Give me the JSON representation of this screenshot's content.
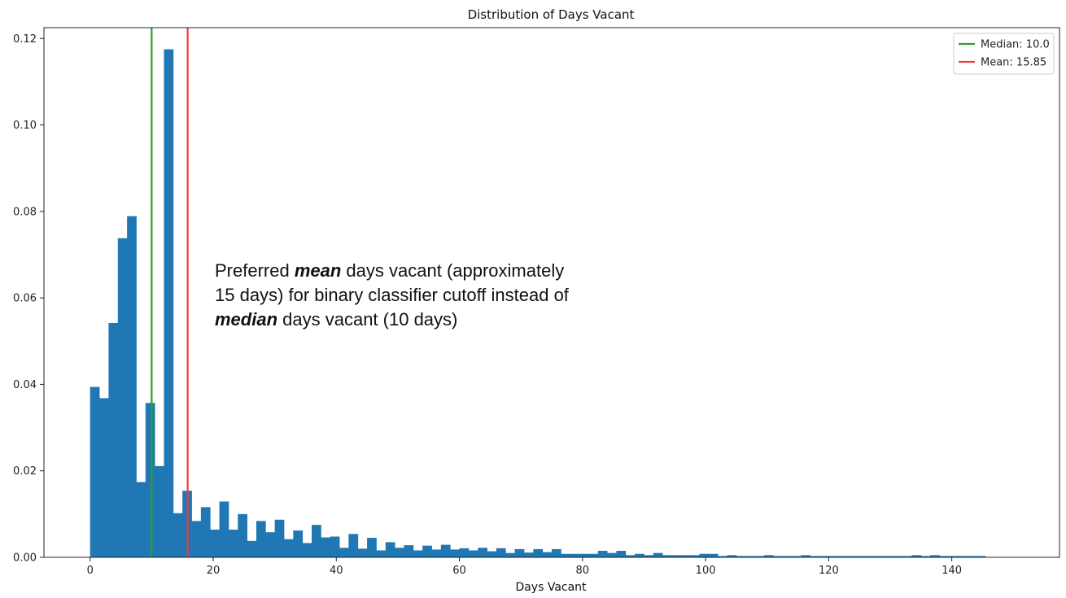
{
  "chart_data": {
    "type": "bar",
    "title": "Distribution of Days Vacant",
    "xlabel": "Days Vacant",
    "ylabel": "",
    "xlim": [
      -7.5,
      157.5
    ],
    "ylim": [
      0,
      0.1225
    ],
    "xticks": [
      0,
      20,
      40,
      60,
      80,
      100,
      120,
      140
    ],
    "yticks": [
      0.0,
      0.02,
      0.04,
      0.06,
      0.08,
      0.1,
      0.12
    ],
    "ytick_labels": [
      "0.00",
      "0.02",
      "0.04",
      "0.06",
      "0.08",
      "0.10",
      "0.12"
    ],
    "bin_start": 0,
    "bin_width": 1.5,
    "bar_color": "#1f77b4",
    "values": [
      0.0394,
      0.0368,
      0.0542,
      0.0738,
      0.0789,
      0.0174,
      0.0357,
      0.0211,
      0.1175,
      0.0102,
      0.0154,
      0.0084,
      0.0116,
      0.0064,
      0.0129,
      0.0064,
      0.01,
      0.0038,
      0.0084,
      0.0058,
      0.0087,
      0.0042,
      0.0062,
      0.0033,
      0.0075,
      0.0046,
      0.0048,
      0.0022,
      0.0054,
      0.002,
      0.0045,
      0.0016,
      0.0035,
      0.0022,
      0.0028,
      0.0016,
      0.0027,
      0.0018,
      0.0029,
      0.0018,
      0.0021,
      0.0016,
      0.0022,
      0.0014,
      0.0021,
      0.001,
      0.0019,
      0.0011,
      0.0019,
      0.0012,
      0.0019,
      0.0008,
      0.0008,
      0.0008,
      0.0008,
      0.0015,
      0.001,
      0.0015,
      0.0005,
      0.0008,
      0.0005,
      0.001,
      0.0005,
      0.0005,
      0.0005,
      0.0005,
      0.0008,
      0.0008,
      0.0003,
      0.0005,
      0.0003,
      0.0003,
      0.0003,
      0.0005,
      0.0003,
      0.0003,
      0.0003,
      0.0005,
      0.0003,
      0.0003,
      0.0003,
      0.0003,
      0.0003,
      0.0003,
      0.0003,
      0.0003,
      0.0003,
      0.0003,
      0.0003,
      0.0005,
      0.0003,
      0.0005,
      0.0003,
      0.0003,
      0.0003,
      0.0003,
      0.0003
    ],
    "vlines": [
      {
        "name": "Median: 10.0",
        "x": 10.0,
        "color": "#2ca02c"
      },
      {
        "name": "Mean: 15.85",
        "x": 15.85,
        "color": "#f03a3a"
      }
    ],
    "legend_position": "top-right",
    "grid": false
  },
  "annotation": {
    "line1_pre": "Preferred ",
    "line1_em": "mean",
    "line1_post": " days vacant (approximately",
    "line2": "15 days) for binary classifier cutoff instead of",
    "line3_em": "median",
    "line3_post": " days vacant (10 days)"
  }
}
